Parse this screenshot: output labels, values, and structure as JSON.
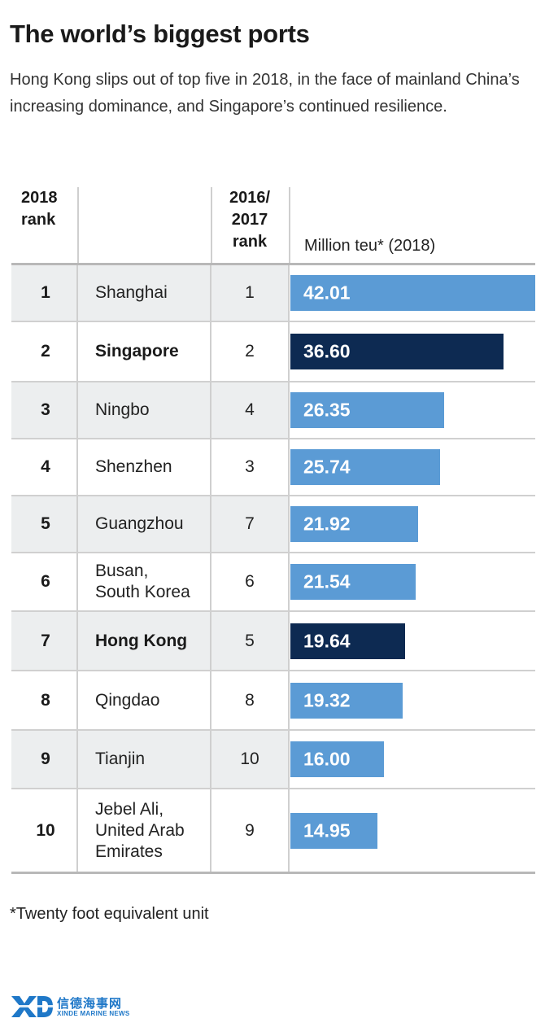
{
  "title": "The world’s biggest ports",
  "subtitle": "Hong Kong slips out of top five in 2018, in the face of mainland China’s increasing dominance, and Singapore’s continued resilience.",
  "headers": {
    "rank_2018_line1": "2018",
    "rank_2018_line2": "rank",
    "rank_prev_line1": "2016/",
    "rank_prev_line2": "2017",
    "rank_prev_line3": "rank",
    "unit": "Million teu* (2018)"
  },
  "footnote": "*Twenty foot equivalent unit",
  "logo": {
    "cn": "信德海事网",
    "en": "XINDE MARINE NEWS"
  },
  "colors": {
    "bar": "#5b9bd5",
    "highlight": "#0d2a52",
    "shade": "#eceeef"
  },
  "chart_data": {
    "type": "bar",
    "orientation": "horizontal",
    "title": "The world’s biggest ports",
    "xlabel": "Million teu* (2018)",
    "xlim": [
      0,
      42.01
    ],
    "categories": [
      "Shanghai",
      "Singapore",
      "Ningbo",
      "Shenzhen",
      "Guangzhou",
      "Busan, South Korea",
      "Hong Kong",
      "Qingdao",
      "Tianjin",
      "Jebel Ali, United Arab Emirates"
    ],
    "values": [
      42.01,
      36.6,
      26.35,
      25.74,
      21.92,
      21.54,
      19.64,
      19.32,
      16.0,
      14.95
    ],
    "rows": [
      {
        "rank": "1",
        "name": [
          "Shanghai"
        ],
        "prev": "1",
        "value": 42.01,
        "label": "42.01",
        "highlight": false
      },
      {
        "rank": "2",
        "name": [
          "Singapore"
        ],
        "prev": "2",
        "value": 36.6,
        "label": "36.60",
        "highlight": true
      },
      {
        "rank": "3",
        "name": [
          "Ningbo"
        ],
        "prev": "4",
        "value": 26.35,
        "label": "26.35",
        "highlight": false
      },
      {
        "rank": "4",
        "name": [
          "Shenzhen"
        ],
        "prev": "3",
        "value": 25.74,
        "label": "25.74",
        "highlight": false
      },
      {
        "rank": "5",
        "name": [
          "Guangzhou"
        ],
        "prev": "7",
        "value": 21.92,
        "label": "21.92",
        "highlight": false
      },
      {
        "rank": "6",
        "name": [
          "Busan,",
          "South Korea"
        ],
        "prev": "6",
        "value": 21.54,
        "label": "21.54",
        "highlight": false
      },
      {
        "rank": "7",
        "name": [
          "Hong Kong"
        ],
        "prev": "5",
        "value": 19.64,
        "label": "19.64",
        "highlight": true
      },
      {
        "rank": "8",
        "name": [
          "Qingdao"
        ],
        "prev": "8",
        "value": 19.32,
        "label": "19.32",
        "highlight": false
      },
      {
        "rank": "9",
        "name": [
          "Tianjin"
        ],
        "prev": "10",
        "value": 16.0,
        "label": "16.00",
        "highlight": false
      },
      {
        "rank": "10",
        "name": [
          "Jebel Ali,",
          "United Arab",
          "Emirates"
        ],
        "prev": "9",
        "value": 14.95,
        "label": "14.95",
        "highlight": false
      }
    ]
  }
}
